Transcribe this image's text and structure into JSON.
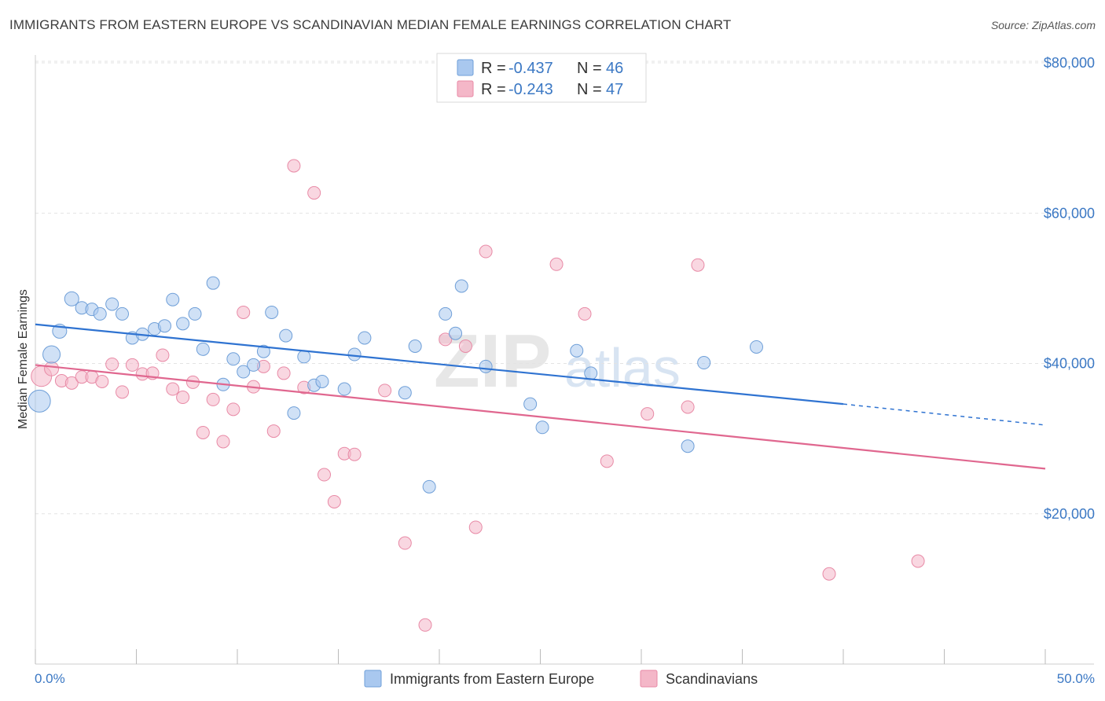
{
  "header": {
    "title": "IMMIGRANTS FROM EASTERN EUROPE VS SCANDINAVIAN MEDIAN FEMALE EARNINGS CORRELATION CHART",
    "source": "Source: ZipAtlas.com"
  },
  "watermark": {
    "zip": "ZIP",
    "atlas": "atlas"
  },
  "legend": {
    "r_label": "R =",
    "n_label": "N =",
    "series": [
      {
        "r": "-0.437",
        "n": "46",
        "color": "#a9c8ef"
      },
      {
        "r": "-0.243",
        "n": "47",
        "color": "#f4b7c8"
      }
    ]
  },
  "colors": {
    "blue_fill": "#a9c8ef",
    "blue_stroke": "#6f9fd8",
    "blue_line": "#2f73d1",
    "pink_fill": "#f4b7c8",
    "pink_stroke": "#e88aa6",
    "pink_line": "#e0678f",
    "axis_text": "#3b78c4"
  },
  "chart_data": {
    "type": "scatter",
    "title": "IMMIGRANTS FROM EASTERN EUROPE VS SCANDINAVIAN MEDIAN FEMALE EARNINGS CORRELATION CHART",
    "xlabel": "",
    "ylabel": "Median Female Earnings",
    "xlim": [
      0,
      50
    ],
    "ylim": [
      0,
      80000
    ],
    "x_tick_labels": [
      "0.0%",
      "50.0%"
    ],
    "y_ticks": [
      20000,
      40000,
      60000,
      80000
    ],
    "y_tick_labels": [
      "$20,000",
      "$40,000",
      "$60,000",
      "$80,000"
    ],
    "series": [
      {
        "name": "Immigrants from Eastern Europe",
        "color": "#a9c8ef",
        "r": -0.437,
        "n": 46,
        "trend": {
          "x0": 0,
          "y0": 45200,
          "x1": 40,
          "y1": 34600,
          "dash_x1": 50,
          "dash_y1": 31800
        },
        "points": [
          [
            0.2,
            35000,
            14
          ],
          [
            0.8,
            41200,
            11
          ],
          [
            1.2,
            44300,
            9
          ],
          [
            1.8,
            48600,
            9
          ],
          [
            2.3,
            47400,
            8
          ],
          [
            2.8,
            47200,
            8
          ],
          [
            3.2,
            46600,
            8
          ],
          [
            3.8,
            47900,
            8
          ],
          [
            4.3,
            46600,
            8
          ],
          [
            4.8,
            43400,
            8
          ],
          [
            5.3,
            43900,
            8
          ],
          [
            5.9,
            44600,
            8
          ],
          [
            6.4,
            45000,
            8
          ],
          [
            6.8,
            48500,
            8
          ],
          [
            7.3,
            45300,
            8
          ],
          [
            7.9,
            46600,
            8
          ],
          [
            8.3,
            41900,
            8
          ],
          [
            8.8,
            50700,
            8
          ],
          [
            9.3,
            37200,
            8
          ],
          [
            9.8,
            40600,
            8
          ],
          [
            10.3,
            38900,
            8
          ],
          [
            10.8,
            39800,
            8
          ],
          [
            11.3,
            41600,
            8
          ],
          [
            11.7,
            46800,
            8
          ],
          [
            12.4,
            43700,
            8
          ],
          [
            12.8,
            33400,
            8
          ],
          [
            13.3,
            40900,
            8
          ],
          [
            13.8,
            37100,
            8
          ],
          [
            14.2,
            37600,
            8
          ],
          [
            15.3,
            36600,
            8
          ],
          [
            15.8,
            41200,
            8
          ],
          [
            16.3,
            43400,
            8
          ],
          [
            18.3,
            36100,
            8
          ],
          [
            18.8,
            42300,
            8
          ],
          [
            19.5,
            23600,
            8
          ],
          [
            20.3,
            46600,
            8
          ],
          [
            20.8,
            44000,
            8
          ],
          [
            21.1,
            50300,
            8
          ],
          [
            22.3,
            39600,
            8
          ],
          [
            24.5,
            34600,
            8
          ],
          [
            25.1,
            31500,
            8
          ],
          [
            26.8,
            41700,
            8
          ],
          [
            27.5,
            38700,
            8
          ],
          [
            32.3,
            29000,
            8
          ],
          [
            33.1,
            40100,
            8
          ],
          [
            35.7,
            42200,
            8
          ]
        ]
      },
      {
        "name": "Scandinavians",
        "color": "#f4b7c8",
        "r": -0.243,
        "n": 47,
        "trend": {
          "x0": 0,
          "y0": 39800,
          "x1": 50,
          "y1": 26000
        },
        "points": [
          [
            0.3,
            38300,
            13
          ],
          [
            0.8,
            39300,
            9
          ],
          [
            1.3,
            37700,
            8
          ],
          [
            1.8,
            37400,
            8
          ],
          [
            2.3,
            38200,
            8
          ],
          [
            2.8,
            38200,
            8
          ],
          [
            3.3,
            37600,
            8
          ],
          [
            3.8,
            39900,
            8
          ],
          [
            4.3,
            36200,
            8
          ],
          [
            4.8,
            39800,
            8
          ],
          [
            5.3,
            38600,
            8
          ],
          [
            5.8,
            38700,
            8
          ],
          [
            6.3,
            41100,
            8
          ],
          [
            6.8,
            36600,
            8
          ],
          [
            7.3,
            35500,
            8
          ],
          [
            7.8,
            37500,
            8
          ],
          [
            8.3,
            30800,
            8
          ],
          [
            8.8,
            35200,
            8
          ],
          [
            9.3,
            29600,
            8
          ],
          [
            9.8,
            33900,
            8
          ],
          [
            10.3,
            46800,
            8
          ],
          [
            10.8,
            36900,
            8
          ],
          [
            11.3,
            39600,
            8
          ],
          [
            11.8,
            31000,
            8
          ],
          [
            12.3,
            38700,
            8
          ],
          [
            12.8,
            66300,
            8
          ],
          [
            13.3,
            36800,
            8
          ],
          [
            13.8,
            62700,
            8
          ],
          [
            14.3,
            25200,
            8
          ],
          [
            14.8,
            21600,
            8
          ],
          [
            15.3,
            28000,
            8
          ],
          [
            15.8,
            27900,
            8
          ],
          [
            17.3,
            36400,
            8
          ],
          [
            18.3,
            16100,
            8
          ],
          [
            19.3,
            5200,
            8
          ],
          [
            20.3,
            43200,
            8
          ],
          [
            21.3,
            42300,
            8
          ],
          [
            21.8,
            18200,
            8
          ],
          [
            22.3,
            54900,
            8
          ],
          [
            25.8,
            53200,
            8
          ],
          [
            27.2,
            46600,
            8
          ],
          [
            28.3,
            27000,
            8
          ],
          [
            30.3,
            33300,
            8
          ],
          [
            32.3,
            34200,
            8
          ],
          [
            32.8,
            53100,
            8
          ],
          [
            39.3,
            12000,
            8
          ],
          [
            43.7,
            13700,
            8
          ]
        ]
      }
    ]
  },
  "bottom_legend": [
    {
      "label": "Immigrants from Eastern Europe",
      "color": "#a9c8ef"
    },
    {
      "label": "Scandinavians",
      "color": "#f4b7c8"
    }
  ]
}
